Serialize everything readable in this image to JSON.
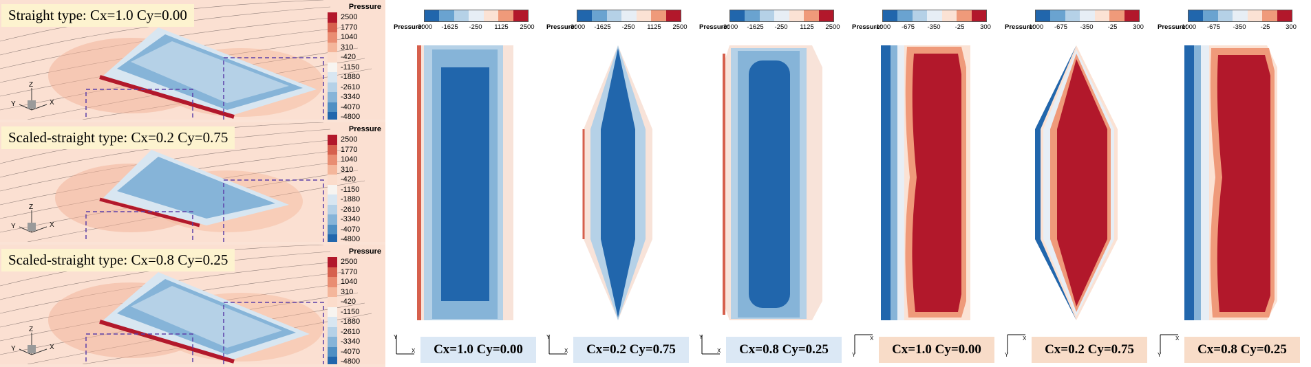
{
  "left_views": [
    {
      "title": "Straight type: Cx=1.0 Cy=0.00"
    },
    {
      "title": "Scaled-straight type: Cx=0.2  Cy=0.75"
    },
    {
      "title": "Scaled-straight type: Cx=0.8  Cy=0.25"
    }
  ],
  "pressure_legend": {
    "title": "Pressure",
    "levels": [
      "2500",
      "1770",
      "1040",
      "310",
      "-420",
      "-1150",
      "-1880",
      "-2610",
      "-3340",
      "-4070",
      "-4800"
    ],
    "colors": [
      "#b2182b",
      "#d6604d",
      "#e98d72",
      "#f4b69b",
      "#fbdccb",
      "#f7f4f0",
      "#d8e6f1",
      "#b5d1e7",
      "#86b4d8",
      "#4f8fc3",
      "#2166ac"
    ]
  },
  "axis_labels": {
    "x": "X",
    "y": "Y",
    "z": "Z"
  },
  "contour_panels": [
    {
      "caption": "Cx=1.0  Cy=0.00",
      "bar_title": "Pressure:",
      "ticks": [
        "-3000",
        "-1625",
        "-250",
        "1125",
        "2500"
      ],
      "caption_style": "blue"
    },
    {
      "caption": "Cx=0.2  Cy=0.75",
      "bar_title": "Pressure:",
      "ticks": [
        "-3000",
        "-1625",
        "-250",
        "1125",
        "2500"
      ],
      "caption_style": "blue"
    },
    {
      "caption": "Cx=0.8  Cy=0.25",
      "bar_title": "Pressure:",
      "ticks": [
        "-3000",
        "-1625",
        "-250",
        "1125",
        "2500"
      ],
      "caption_style": "blue"
    },
    {
      "caption": "Cx=1.0  Cy=0.00",
      "bar_title": "Pressure:",
      "ticks": [
        "-1000",
        "-675",
        "-350",
        "-25",
        "300"
      ],
      "caption_style": "peach"
    },
    {
      "caption": "Cx=0.2  Cy=0.75",
      "bar_title": "Pressure:",
      "ticks": [
        "-1000",
        "-675",
        "-350",
        "-25",
        "300"
      ],
      "caption_style": "peach"
    },
    {
      "caption": "Cx=0.8  Cy=0.25",
      "bar_title": "Pressure:",
      "ticks": [
        "-1000",
        "-675",
        "-350",
        "-25",
        "300"
      ],
      "caption_style": "peach"
    }
  ],
  "colorbar_colors": [
    "#2166ac",
    "#6aa3d0",
    "#b5d1e7",
    "#e7eef5",
    "#fbe2d4",
    "#ef9a7a",
    "#b2182b"
  ]
}
